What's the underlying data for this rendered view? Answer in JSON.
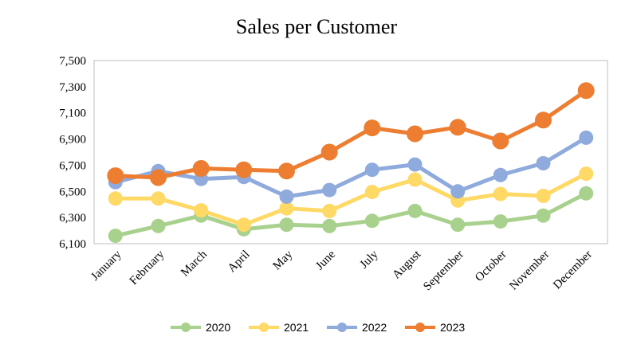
{
  "chart_data": {
    "type": "line",
    "title": "Sales per Customer",
    "xlabel": "",
    "ylabel": "",
    "categories": [
      "January",
      "February",
      "March",
      "April",
      "May",
      "June",
      "July",
      "August",
      "September",
      "October",
      "November",
      "December"
    ],
    "yticks": [
      "6,100",
      "6,300",
      "6,500",
      "6,700",
      "6,900",
      "7,100",
      "7,300",
      "7,500"
    ],
    "ylim": [
      6100,
      7500
    ],
    "grid": false,
    "legend_position": "bottom",
    "series": [
      {
        "name": "2020",
        "color": "#a9d18e",
        "values": [
          6160,
          6235,
          6315,
          6210,
          6245,
          6235,
          6275,
          6350,
          6245,
          6270,
          6315,
          6485
        ]
      },
      {
        "name": "2021",
        "color": "#ffd966",
        "values": [
          6445,
          6445,
          6355,
          6245,
          6370,
          6350,
          6495,
          6590,
          6430,
          6480,
          6465,
          6635
        ]
      },
      {
        "name": "2022",
        "color": "#8faadc",
        "values": [
          6570,
          6655,
          6595,
          6610,
          6460,
          6510,
          6665,
          6705,
          6500,
          6625,
          6715,
          6910
        ]
      },
      {
        "name": "2023",
        "color": "#ed7d31",
        "values": [
          6620,
          6605,
          6675,
          6665,
          6655,
          6800,
          6985,
          6940,
          6990,
          6885,
          7045,
          7270
        ]
      }
    ]
  }
}
